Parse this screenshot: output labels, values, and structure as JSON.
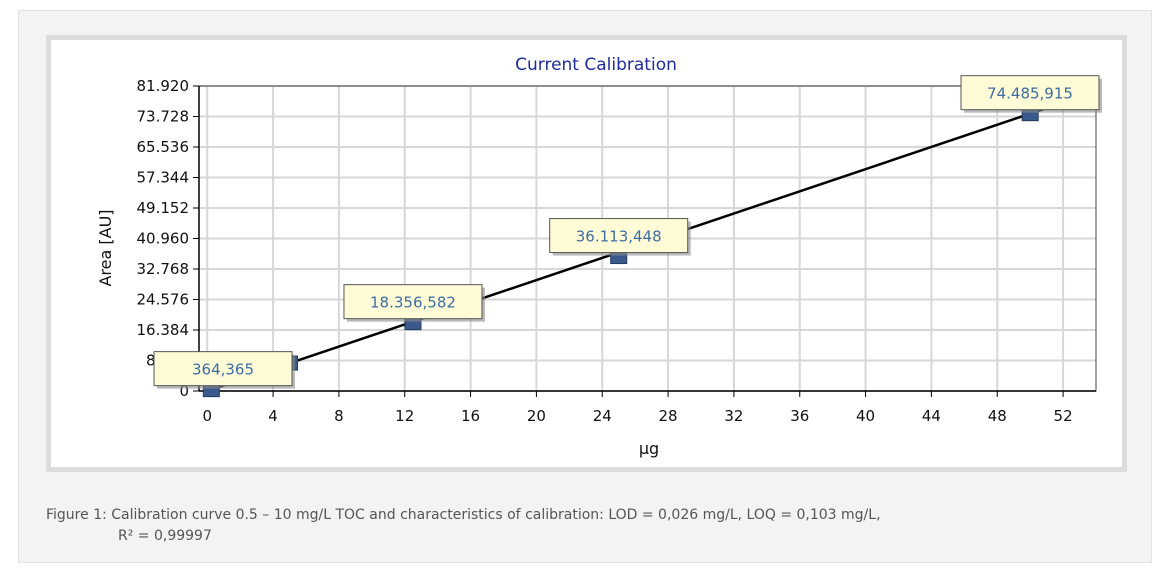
{
  "caption": {
    "line1": "Figure 1: Calibration curve 0.5 – 10 mg/L TOC and characteristics of calibration: LOD = 0,026 mg/L,  LOQ = 0,103 mg/L,",
    "line2": "R² = 0,99997"
  },
  "chart_data": {
    "type": "scatter",
    "title": "Current Calibration",
    "xlabel": "µg",
    "ylabel": "Area [AU]",
    "xlim": [
      -0.5,
      54
    ],
    "ylim": [
      0,
      81920
    ],
    "x_ticks": [
      0,
      4,
      8,
      12,
      16,
      20,
      24,
      28,
      32,
      36,
      40,
      44,
      48,
      52
    ],
    "x_tick_labels": [
      "0",
      "4",
      "8",
      "12",
      "16",
      "20",
      "24",
      "28",
      "32",
      "36",
      "40",
      "44",
      "48",
      "52"
    ],
    "y_ticks": [
      0,
      8192,
      16384,
      24576,
      32768,
      40960,
      49152,
      57344,
      65536,
      73728,
      81920
    ],
    "y_tick_labels": [
      "0",
      "8.192",
      "16.384",
      "24.576",
      "32.768",
      "40.960",
      "49.152",
      "57.344",
      "65.536",
      "73.728",
      "81.920"
    ],
    "grid": true,
    "series": [
      {
        "points": [
          {
            "x": 0.25,
            "y": 364,
            "label": "364,365"
          },
          {
            "x": 5,
            "y": 7500,
            "label": ""
          },
          {
            "x": 12.5,
            "y": 18357,
            "label": "18.356,582"
          },
          {
            "x": 25,
            "y": 36113,
            "label": "36.113,448"
          },
          {
            "x": 50,
            "y": 74486,
            "label": "74.485,915"
          }
        ],
        "color": "#3a5a8c"
      }
    ],
    "fit_line": {
      "x": [
        0,
        54
      ],
      "y": [
        0,
        80450
      ],
      "color": "#000000"
    }
  }
}
